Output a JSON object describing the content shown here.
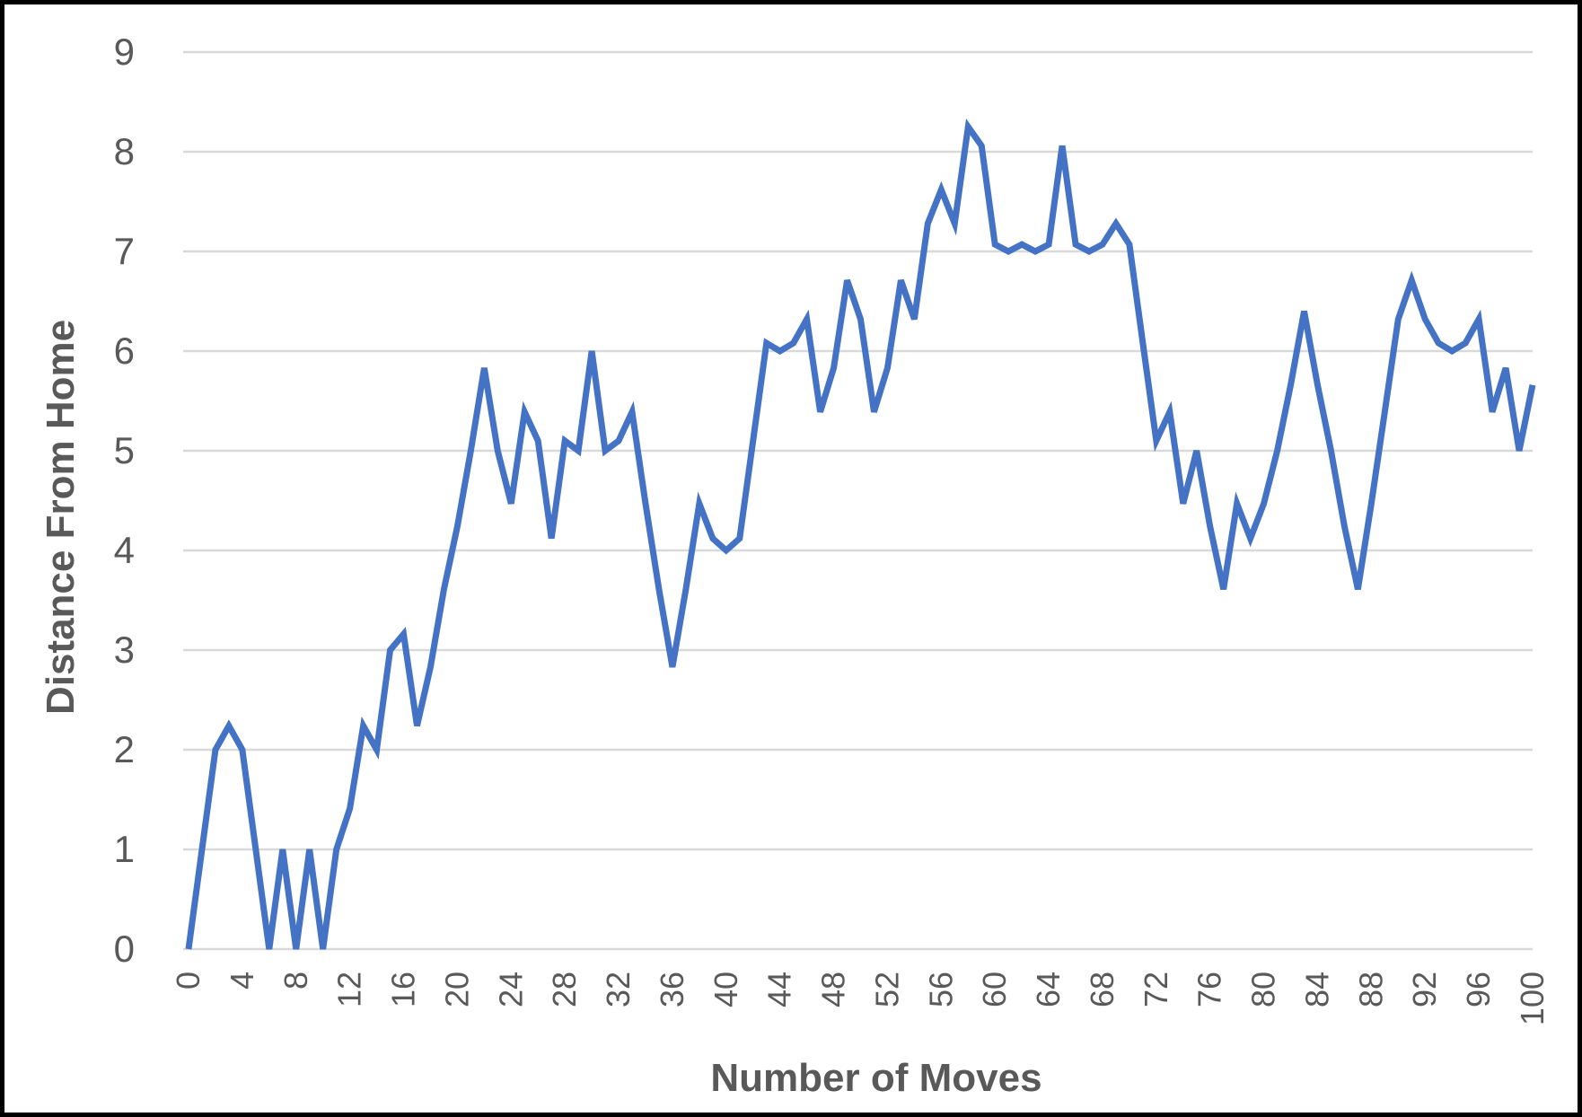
{
  "chart_data": {
    "type": "line",
    "xlabel": "Number of Moves",
    "ylabel": "Distance From Home",
    "xlim": [
      0,
      100
    ],
    "ylim": [
      0,
      9
    ],
    "x_ticks": [
      0,
      4,
      8,
      12,
      16,
      20,
      24,
      28,
      32,
      36,
      40,
      44,
      48,
      52,
      56,
      60,
      64,
      68,
      72,
      76,
      80,
      84,
      88,
      92,
      96,
      100
    ],
    "y_ticks": [
      0,
      1,
      2,
      3,
      4,
      5,
      6,
      7,
      8,
      9
    ],
    "grid": true,
    "legend": "none",
    "colors": {
      "line": "#4472C4",
      "grid": "#D9D9D9",
      "text": "#595959",
      "frame": "#000000"
    },
    "series": [
      {
        "x": [
          0,
          1,
          2,
          3,
          4,
          5,
          6,
          7,
          8,
          9,
          10,
          11,
          12,
          13,
          14,
          15,
          16,
          17,
          18,
          19,
          20,
          21,
          22,
          23,
          24,
          25,
          26,
          27,
          28,
          29,
          30,
          31,
          32,
          33,
          34,
          35,
          36,
          37,
          38,
          39,
          40,
          41,
          42,
          43,
          44,
          45,
          46,
          47,
          48,
          49,
          50,
          51,
          52,
          53,
          54,
          55,
          56,
          57,
          58,
          59,
          60,
          61,
          62,
          63,
          64,
          65,
          66,
          67,
          68,
          69,
          70,
          71,
          72,
          73,
          74,
          75,
          76,
          77,
          78,
          79,
          80,
          81,
          82,
          83,
          84,
          85,
          86,
          87,
          88,
          89,
          90,
          91,
          92,
          93,
          94,
          95,
          96,
          97,
          98,
          99,
          100
        ],
        "values": [
          0,
          1,
          2,
          2.24,
          2,
          1,
          0,
          1,
          0,
          1,
          0,
          1,
          1.41,
          2.24,
          2,
          3,
          3.16,
          2.24,
          2.83,
          3.61,
          4.24,
          5,
          5.83,
          5,
          4.47,
          5.39,
          5.1,
          4.12,
          5.1,
          5,
          6,
          5,
          5.1,
          5.39,
          4.47,
          3.61,
          2.83,
          3.61,
          4.47,
          4.12,
          4,
          4.12,
          5.1,
          6.08,
          6,
          6.08,
          6.32,
          5.39,
          5.83,
          6.71,
          6.32,
          5.39,
          5.83,
          6.71,
          6.32,
          7.28,
          7.62,
          7.28,
          8.25,
          8.06,
          7.07,
          7,
          7.07,
          7,
          7.07,
          8.06,
          7.07,
          7,
          7.07,
          7.28,
          7.07,
          6.08,
          5.1,
          5.39,
          4.47,
          5,
          4.24,
          3.61,
          4.47,
          4.12,
          4.47,
          5,
          5.66,
          6.4,
          5.66,
          5,
          4.24,
          3.61,
          4.47,
          5.39,
          6.32,
          6.71,
          6.32,
          6.08,
          6,
          6.08,
          6.32,
          5.39,
          5.83,
          5,
          5.66
        ]
      }
    ]
  }
}
